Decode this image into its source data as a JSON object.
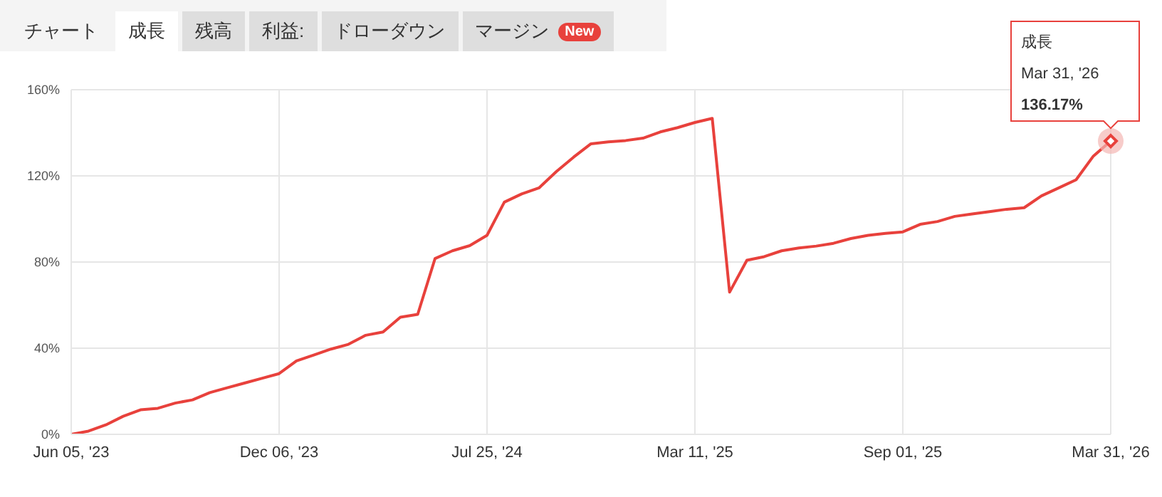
{
  "chart_data": {
    "type": "line",
    "categories": [
      "Jun 05, '23",
      null,
      null,
      null,
      null,
      null,
      null,
      null,
      null,
      null,
      null,
      null,
      "Dec 06, '23",
      null,
      null,
      null,
      null,
      null,
      null,
      null,
      null,
      null,
      null,
      null,
      "Jul 25, '24",
      null,
      null,
      null,
      null,
      null,
      null,
      null,
      null,
      null,
      null,
      null,
      "Mar 11, '25",
      null,
      null,
      null,
      null,
      null,
      null,
      null,
      null,
      null,
      null,
      null,
      "Sep 01, '25",
      null,
      null,
      null,
      null,
      null,
      null,
      null,
      null,
      null,
      null,
      null,
      "Mar 31, '26"
    ],
    "series": [
      {
        "name": "成長",
        "color": "#e8413c",
        "values": [
          0,
          1.5,
          4.4,
          8.4,
          11.4,
          12.1,
          14.5,
          16,
          19.4,
          21.6,
          23.8,
          26,
          28.2,
          34.1,
          36.8,
          39.6,
          41.8,
          46,
          47.5,
          54.4,
          55.7,
          81.6,
          85.2,
          87.6,
          92.4,
          107.8,
          111.6,
          114.4,
          122,
          128.7,
          134.9,
          135.8,
          136.4,
          137.5,
          140.4,
          142.4,
          144.8,
          146.7,
          66,
          80.8,
          82.5,
          85.2,
          86.5,
          87.4,
          88.7,
          90.9,
          92.4,
          93.3,
          94,
          97.5,
          98.8,
          101.2,
          102.3,
          103.4,
          104.5,
          105.2,
          110.7,
          114.4,
          118.2,
          129.2,
          136.17
        ]
      }
    ],
    "ylim": [
      0,
      160
    ],
    "yticks": [
      {
        "value": 0,
        "label": "0%"
      },
      {
        "value": 40,
        "label": "40%"
      },
      {
        "value": 80,
        "label": "80%"
      },
      {
        "value": 120,
        "label": "120%"
      },
      {
        "value": 160,
        "label": "160%"
      }
    ],
    "grid": true,
    "legend": false,
    "annotations": [
      "チャート",
      "成長",
      "残高",
      "利益:",
      "ドローダウン",
      "マージン",
      "New",
      {
        "text": "136.17%",
        "x": "Mar 31, '26",
        "y": 136.17
      }
    ]
  }
}
